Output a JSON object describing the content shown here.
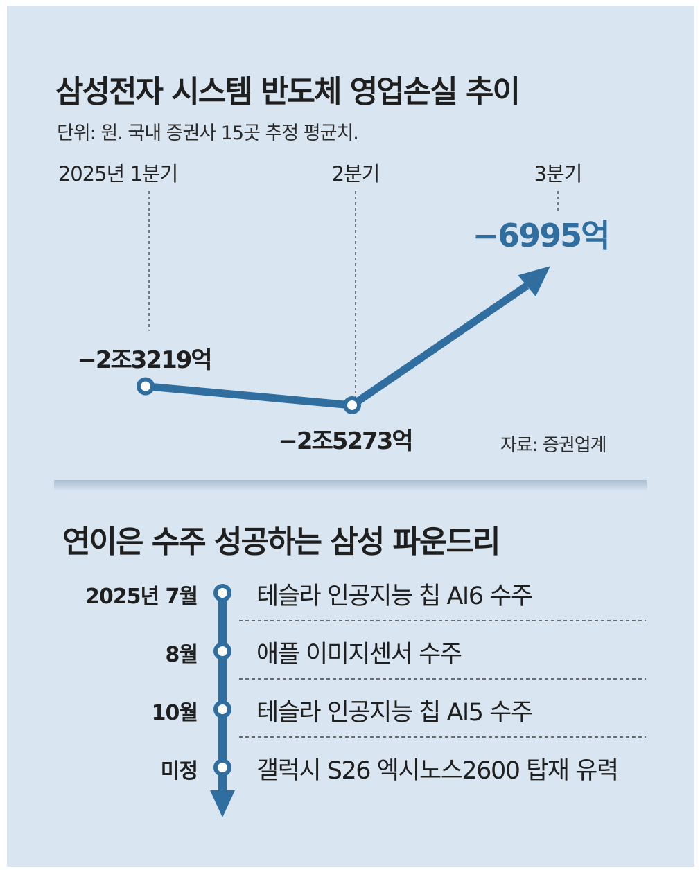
{
  "chart_data": {
    "type": "line",
    "title": "삼성전자 시스템 반도체 영업손실 추이",
    "subtitle": "단위: 원. 국내 증권사 15곳 추정 평균치.",
    "categories": [
      "2025년 1분기",
      "2분기",
      "3분기"
    ],
    "values": [
      -23219,
      -25273,
      -6995
    ],
    "value_unit": "억원",
    "data_labels": [
      "−2조3219억",
      "−2조5273억",
      "−6995억"
    ],
    "ylim": [
      -27000,
      -6000
    ],
    "grid": false,
    "legend": "none",
    "line_color": "#2f6e9f",
    "source": "자료: 증권업계"
  },
  "timeline": {
    "title": "연이은 수주 성공하는 삼성 파운드리",
    "events": [
      {
        "date": "2025년 7월",
        "desc": "테슬라 인공지능 칩 AI6 수주"
      },
      {
        "date": "8월",
        "desc": "애플 이미지센서 수주"
      },
      {
        "date": "10월",
        "desc": "테슬라 인공지능 칩 AI5 수주"
      },
      {
        "date": "미정",
        "desc": "갤럭시 S26 엑시노스2600 탑재 유력"
      }
    ]
  },
  "colors": {
    "background": "#d9e5f1",
    "accent": "#2f6e9f",
    "text": "#1f1f1f"
  }
}
